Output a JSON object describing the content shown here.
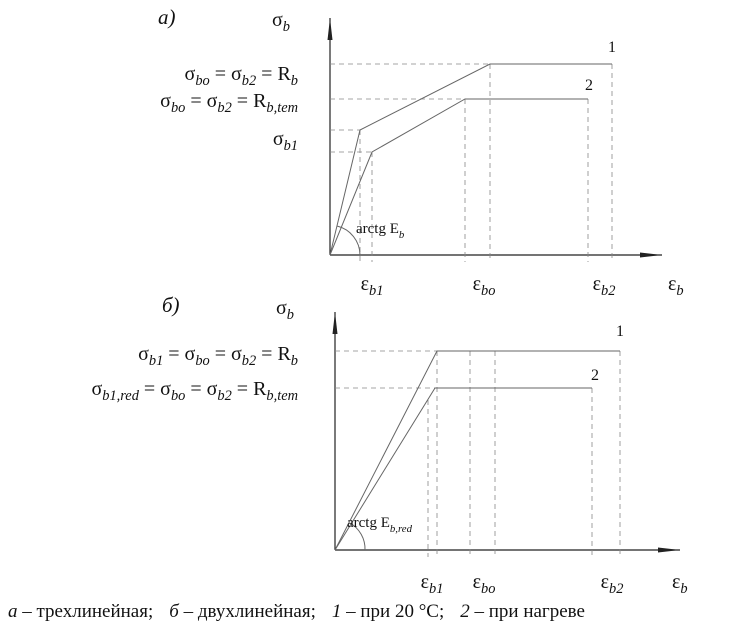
{
  "diagram_a": {
    "label": "а)",
    "y_axis": [
      "σ",
      "b"
    ],
    "x_axis": [
      "ε",
      "b"
    ],
    "y_labels": [
      [
        "σ",
        "bo",
        " = σ",
        "b2",
        " = R",
        "b"
      ],
      [
        "σ",
        "bo",
        " = σ",
        "b2",
        " = R",
        "b,tem"
      ],
      [
        "σ",
        "b1"
      ]
    ],
    "x_labels": [
      [
        "ε",
        "b1"
      ],
      [
        "ε",
        "bo"
      ],
      [
        "ε",
        "b2"
      ]
    ],
    "curve_labels": [
      "1",
      "2"
    ],
    "angle_label": [
      "arctg E",
      "b"
    ]
  },
  "diagram_b": {
    "label": "б)",
    "y_axis": [
      "σ",
      "b"
    ],
    "x_axis": [
      "ε",
      "b"
    ],
    "y_labels": [
      [
        "σ",
        "b1",
        " = σ",
        "bo",
        " = σ",
        "b2",
        " = R",
        "b"
      ],
      [
        "σ",
        "b1,red",
        " = σ",
        "bo",
        " = σ",
        "b2",
        " = R",
        "b,tem"
      ]
    ],
    "x_labels": [
      [
        "ε",
        "b1"
      ],
      [
        "ε",
        "bo"
      ],
      [
        "ε",
        "b2"
      ]
    ],
    "curve_labels": [
      "1",
      "2"
    ],
    "angle_label": [
      "arctg E",
      "b,red"
    ]
  },
  "caption": [
    {
      "key": "а",
      "text": " – трехлинейная;"
    },
    {
      "key": "б",
      "text": " – двухлинейная;"
    },
    {
      "key": "1",
      "text": " – при 20 °C;"
    },
    {
      "key": "2",
      "text": " – при нагреве"
    }
  ]
}
